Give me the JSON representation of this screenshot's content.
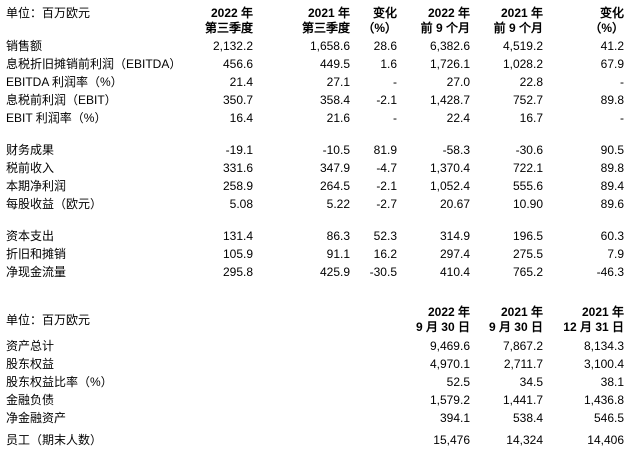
{
  "colors": {
    "background": "#ffffff",
    "text": "#000000"
  },
  "section1": {
    "unit_label": "单位：百万欧元",
    "columns": [
      {
        "line1": "2022 年",
        "line2": "第三季度"
      },
      {
        "line1": "2021 年",
        "line2": "第三季度"
      },
      {
        "line1": "变化",
        "line2": "（%）"
      },
      {
        "line1": "2022 年",
        "line2": "前 9 个月"
      },
      {
        "line1": "2021 年",
        "line2": "前 9 个月"
      },
      {
        "line1": "变化",
        "line2": "（%）"
      }
    ],
    "groups": [
      {
        "rows": [
          {
            "label": "销售额",
            "values": [
              "2,132.2",
              "1,658.6",
              "28.6",
              "6,382.6",
              "4,519.2",
              "41.2"
            ]
          },
          {
            "label": "息税折旧摊销前利润（EBITDA）",
            "values": [
              "456.6",
              "449.5",
              "1.6",
              "1,726.1",
              "1,028.2",
              "67.9"
            ]
          },
          {
            "label": "EBITDA 利润率（%）",
            "values": [
              "21.4",
              "27.1",
              "-",
              "27.0",
              "22.8",
              "-"
            ]
          },
          {
            "label": "息税前利润（EBIT）",
            "values": [
              "350.7",
              "358.4",
              "-2.1",
              "1,428.7",
              "752.7",
              "89.8"
            ]
          },
          {
            "label": "EBIT 利润率（%）",
            "values": [
              "16.4",
              "21.6",
              "-",
              "22.4",
              "16.7",
              "-"
            ]
          }
        ]
      },
      {
        "rows": [
          {
            "label": "财务成果",
            "values": [
              "-19.1",
              "-10.5",
              "81.9",
              "-58.3",
              "-30.6",
              "90.5"
            ]
          },
          {
            "label": "税前收入",
            "values": [
              "331.6",
              "347.9",
              "-4.7",
              "1,370.4",
              "722.1",
              "89.8"
            ]
          },
          {
            "label": "本期净利润",
            "values": [
              "258.9",
              "264.5",
              "-2.1",
              "1,052.4",
              "555.6",
              "89.4"
            ]
          },
          {
            "label": "每股收益（欧元）",
            "values": [
              "5.08",
              "5.22",
              "-2.7",
              "20.67",
              "10.90",
              "89.6"
            ]
          }
        ]
      },
      {
        "rows": [
          {
            "label": "资本支出",
            "values": [
              "131.4",
              "86.3",
              "52.3",
              "314.9",
              "196.5",
              "60.3"
            ]
          },
          {
            "label": "折旧和摊销",
            "values": [
              "105.9",
              "91.1",
              "16.2",
              "297.4",
              "275.5",
              "7.9"
            ]
          },
          {
            "label": "净现金流量",
            "values": [
              "295.8",
              "425.9",
              "-30.5",
              "410.4",
              "765.2",
              "-46.3"
            ]
          }
        ]
      }
    ]
  },
  "section2": {
    "unit_label": "单位：百万欧元",
    "columns": [
      {
        "line1": "2022 年",
        "line2": "9 月 30 日"
      },
      {
        "line1": "2021 年",
        "line2": "9 月 30 日"
      },
      {
        "line1": "2021 年",
        "line2": "12 月 31 日"
      }
    ],
    "groups": [
      {
        "rows": [
          {
            "label": "资产总计",
            "values": [
              "9,469.6",
              "7,867.2",
              "8,134.3"
            ]
          },
          {
            "label": "股东权益",
            "values": [
              "4,970.1",
              "2,711.7",
              "3,100.4"
            ]
          },
          {
            "label": "股东权益比率（%）",
            "values": [
              "52.5",
              "34.5",
              "38.1"
            ]
          },
          {
            "label": "金融负债",
            "values": [
              "1,579.2",
              "1,441.7",
              "1,436.8"
            ]
          },
          {
            "label": "净金融资产",
            "values": [
              "394.1",
              "538.4",
              "546.5"
            ]
          }
        ]
      },
      {
        "rows": [
          {
            "label": "员工（期末人数）",
            "values": [
              "15,476",
              "14,324",
              "14,406"
            ]
          }
        ]
      }
    ]
  }
}
